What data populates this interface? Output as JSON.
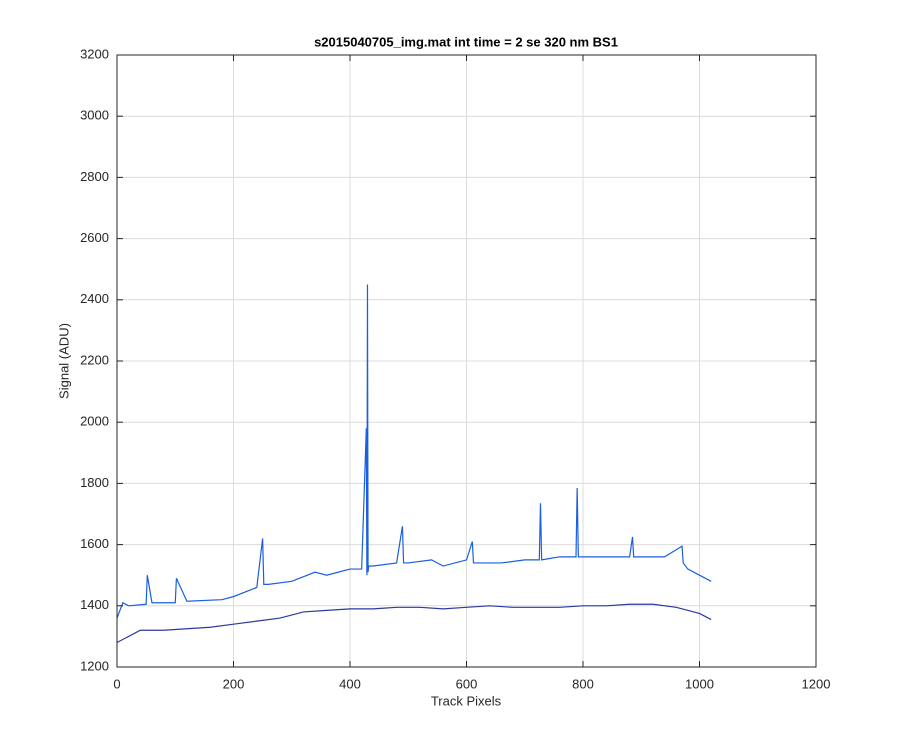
{
  "chart_data": {
    "type": "line",
    "title": "s2015040705_img.mat int time = 2 se  320 nm BS1",
    "x_label": "Track Pixels",
    "y_label": "Signal (ADU)",
    "xlim": [
      0,
      1200
    ],
    "xticks": [
      0,
      200,
      400,
      600,
      800,
      1000,
      1200
    ],
    "ylim": [
      1200,
      3200
    ],
    "yticks": [
      1200,
      1400,
      1600,
      1800,
      2000,
      2200,
      2400,
      2600,
      2800,
      3000,
      3200
    ],
    "grid": true,
    "series": [
      {
        "color": "#2a3aa0",
        "x": [
          0,
          40,
          80,
          120,
          160,
          200,
          240,
          280,
          320,
          360,
          400,
          440,
          480,
          520,
          560,
          600,
          640,
          680,
          720,
          760,
          800,
          840,
          880,
          920,
          960,
          1000,
          1020
        ],
        "values": [
          1280,
          1320,
          1320,
          1325,
          1330,
          1340,
          1350,
          1360,
          1380,
          1385,
          1390,
          1390,
          1395,
          1395,
          1390,
          1395,
          1400,
          1395,
          1395,
          1395,
          1400,
          1400,
          1405,
          1405,
          1395,
          1375,
          1355
        ]
      },
      {
        "color": "#1a5fe0",
        "x": [
          0,
          10,
          20,
          50,
          52,
          60,
          100,
          102,
          120,
          180,
          200,
          240,
          250,
          252,
          260,
          300,
          340,
          360,
          380,
          400,
          420,
          428,
          429,
          430,
          431,
          432,
          440,
          480,
          490,
          492,
          500,
          540,
          560,
          600,
          610,
          612,
          620,
          660,
          700,
          725,
          727,
          729,
          760,
          788,
          790,
          792,
          800,
          840,
          880,
          885,
          887,
          900,
          940,
          970,
          972,
          980,
          1000,
          1020
        ],
        "values": [
          1360,
          1410,
          1400,
          1405,
          1500,
          1410,
          1410,
          1490,
          1415,
          1420,
          1430,
          1460,
          1620,
          1470,
          1470,
          1480,
          1510,
          1500,
          1510,
          1520,
          1520,
          1980,
          1500,
          2450,
          1510,
          1530,
          1530,
          1540,
          1660,
          1540,
          1540,
          1550,
          1530,
          1550,
          1610,
          1540,
          1540,
          1540,
          1550,
          1550,
          1735,
          1550,
          1560,
          1560,
          1785,
          1560,
          1560,
          1560,
          1560,
          1625,
          1560,
          1560,
          1560,
          1595,
          1540,
          1520,
          1500,
          1480
        ]
      }
    ]
  }
}
